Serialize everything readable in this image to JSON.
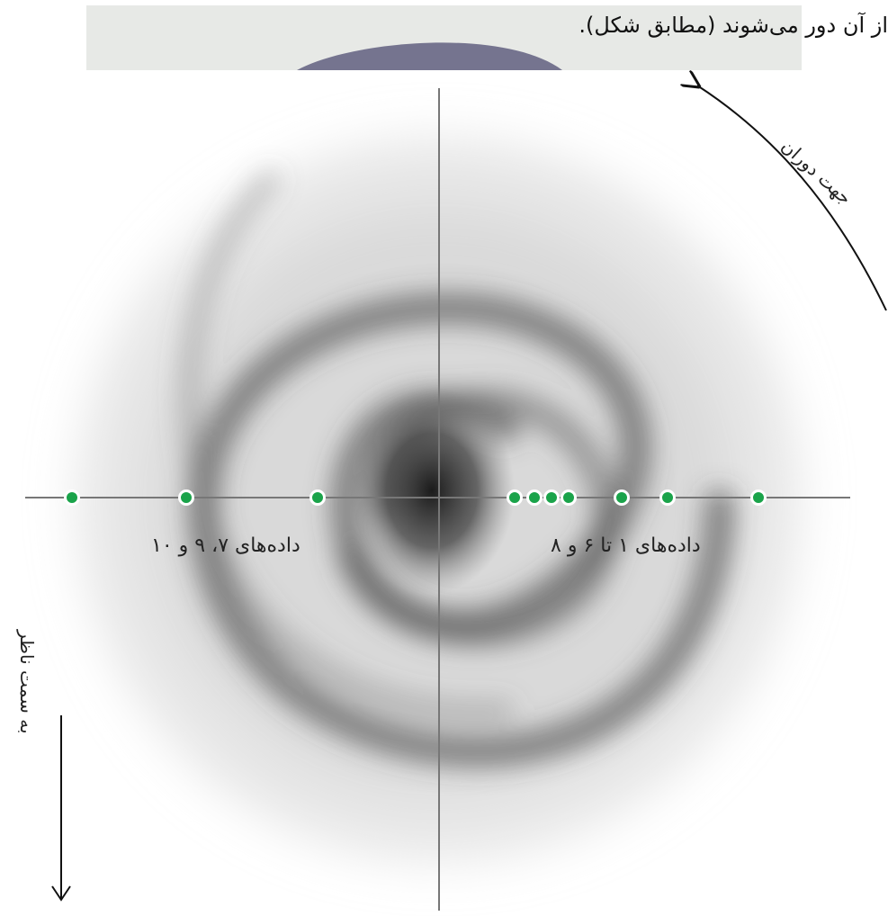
{
  "header": {
    "text": "از آن دور می‌شوند (مطابق شکل)."
  },
  "labels": {
    "right_group": "داده‌های ۱ تا ۶ و ۸",
    "left_group": "داده‌های ۷، ۹ و ۱۰",
    "rotation": "جهت دوران",
    "observer": "به سمت ناظر"
  },
  "colors": {
    "point": "#1aa34a",
    "axis": "#777777",
    "galaxy": "#333333",
    "header_bg": "#e7e9e6"
  },
  "points": {
    "right": [
      1,
      2,
      3,
      4,
      5,
      6,
      8
    ],
    "left": [
      7,
      9,
      10
    ]
  }
}
